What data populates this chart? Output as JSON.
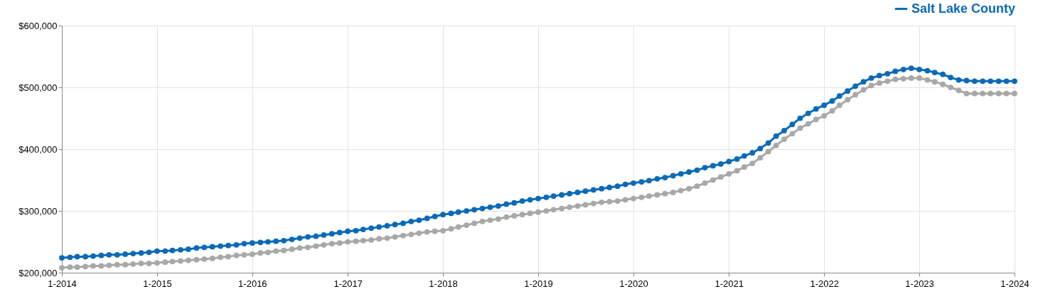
{
  "chart_data": {
    "type": "line",
    "x": [
      "2014-01",
      "2014-02",
      "2014-03",
      "2014-04",
      "2014-05",
      "2014-06",
      "2014-07",
      "2014-08",
      "2014-09",
      "2014-10",
      "2014-11",
      "2014-12",
      "2015-01",
      "2015-02",
      "2015-03",
      "2015-04",
      "2015-05",
      "2015-06",
      "2015-07",
      "2015-08",
      "2015-09",
      "2015-10",
      "2015-11",
      "2015-12",
      "2016-01",
      "2016-02",
      "2016-03",
      "2016-04",
      "2016-05",
      "2016-06",
      "2016-07",
      "2016-08",
      "2016-09",
      "2016-10",
      "2016-11",
      "2016-12",
      "2017-01",
      "2017-02",
      "2017-03",
      "2017-04",
      "2017-05",
      "2017-06",
      "2017-07",
      "2017-08",
      "2017-09",
      "2017-10",
      "2017-11",
      "2017-12",
      "2018-01",
      "2018-02",
      "2018-03",
      "2018-04",
      "2018-05",
      "2018-06",
      "2018-07",
      "2018-08",
      "2018-09",
      "2018-10",
      "2018-11",
      "2018-12",
      "2019-01",
      "2019-02",
      "2019-03",
      "2019-04",
      "2019-05",
      "2019-06",
      "2019-07",
      "2019-08",
      "2019-09",
      "2019-10",
      "2019-11",
      "2019-12",
      "2020-01",
      "2020-02",
      "2020-03",
      "2020-04",
      "2020-05",
      "2020-06",
      "2020-07",
      "2020-08",
      "2020-09",
      "2020-10",
      "2020-11",
      "2020-12",
      "2021-01",
      "2021-02",
      "2021-03",
      "2021-04",
      "2021-05",
      "2021-06",
      "2021-07",
      "2021-08",
      "2021-09",
      "2021-10",
      "2021-11",
      "2021-12",
      "2022-01",
      "2022-02",
      "2022-03",
      "2022-04",
      "2022-05",
      "2022-06",
      "2022-07",
      "2022-08",
      "2022-09",
      "2022-10",
      "2022-11",
      "2022-12",
      "2023-01",
      "2023-02",
      "2023-03",
      "2023-04",
      "2023-05",
      "2023-06",
      "2023-07",
      "2023-08",
      "2023-09",
      "2023-10",
      "2023-11",
      "2023-12",
      "2024-01"
    ],
    "series": [
      {
        "name": "Salt Lake County",
        "color": "#0a6ab8",
        "values": [
          224000,
          225000,
          226000,
          226000,
          227000,
          228000,
          229000,
          229000,
          230000,
          231000,
          232000,
          233000,
          235000,
          235000,
          236000,
          237000,
          238000,
          240000,
          241000,
          242000,
          243000,
          244000,
          245000,
          247000,
          248000,
          249000,
          250000,
          251000,
          252000,
          254000,
          256000,
          258000,
          259000,
          261000,
          263000,
          265000,
          267000,
          268000,
          270000,
          272000,
          274000,
          276000,
          278000,
          280000,
          283000,
          285000,
          288000,
          291000,
          294000,
          296000,
          298000,
          300000,
          302000,
          304000,
          306000,
          308000,
          311000,
          313000,
          316000,
          318000,
          320000,
          322000,
          324000,
          326000,
          328000,
          330000,
          332000,
          334000,
          336000,
          338000,
          340000,
          343000,
          345000,
          347000,
          349000,
          352000,
          354000,
          357000,
          360000,
          363000,
          366000,
          370000,
          373000,
          376000,
          380000,
          384000,
          389000,
          394000,
          401000,
          410000,
          421000,
          430000,
          440000,
          450000,
          458000,
          465000,
          471000,
          478000,
          486000,
          494000,
          502000,
          509000,
          515000,
          519000,
          522000,
          526000,
          529000,
          531000,
          529000,
          527000,
          524000,
          521000,
          516000,
          512000,
          511000,
          510000,
          510000,
          510000,
          510000,
          510000,
          510000
        ]
      },
      {
        "color": "#a8a8a8",
        "values": [
          208000,
          209000,
          209000,
          210000,
          211000,
          211000,
          212000,
          213000,
          213000,
          214000,
          215000,
          215000,
          216000,
          217000,
          218000,
          219000,
          220000,
          221000,
          222000,
          223000,
          225000,
          226000,
          228000,
          229000,
          230000,
          232000,
          233000,
          235000,
          236000,
          238000,
          240000,
          241000,
          243000,
          245000,
          247000,
          248000,
          250000,
          251000,
          252000,
          253000,
          255000,
          256000,
          258000,
          260000,
          262000,
          264000,
          266000,
          267000,
          268000,
          271000,
          274000,
          277000,
          280000,
          283000,
          285000,
          287000,
          290000,
          292000,
          294000,
          296000,
          298000,
          300000,
          302000,
          304000,
          306000,
          308000,
          310000,
          312000,
          314000,
          315000,
          316000,
          318000,
          320000,
          322000,
          324000,
          326000,
          328000,
          330000,
          333000,
          336000,
          340000,
          345000,
          350000,
          355000,
          360000,
          365000,
          371000,
          377000,
          386000,
          396000,
          406000,
          416000,
          425000,
          434000,
          441000,
          448000,
          454000,
          462000,
          471000,
          480000,
          488000,
          496000,
          503000,
          507000,
          510000,
          513000,
          514000,
          515000,
          515000,
          512000,
          509000,
          505000,
          500000,
          495000,
          490000,
          490000,
          490000,
          490000,
          490000,
          490000,
          490000
        ]
      }
    ],
    "xlim": [
      "2014-01",
      "2024-01"
    ],
    "xticks": [
      {
        "value": "2014-01",
        "label": "1-2014"
      },
      {
        "value": "2015-01",
        "label": "1-2015"
      },
      {
        "value": "2016-01",
        "label": "1-2016"
      },
      {
        "value": "2017-01",
        "label": "1-2017"
      },
      {
        "value": "2018-01",
        "label": "1-2018"
      },
      {
        "value": "2019-01",
        "label": "1-2019"
      },
      {
        "value": "2020-01",
        "label": "1-2020"
      },
      {
        "value": "2021-01",
        "label": "1-2021"
      },
      {
        "value": "2022-01",
        "label": "1-2022"
      },
      {
        "value": "2023-01",
        "label": "1-2023"
      },
      {
        "value": "2024-01",
        "label": "1-2024"
      }
    ],
    "ylim": [
      200000,
      600000
    ],
    "yticks": [
      {
        "value": 200000,
        "label": "$200,000"
      },
      {
        "value": 300000,
        "label": "$300,000"
      },
      {
        "value": 400000,
        "label": "$400,000"
      },
      {
        "value": 500000,
        "label": "$500,000"
      },
      {
        "value": 600000,
        "label": "$600,000"
      }
    ],
    "grid": true,
    "legend": "top right",
    "marker": "circle",
    "line_style": "solid"
  }
}
